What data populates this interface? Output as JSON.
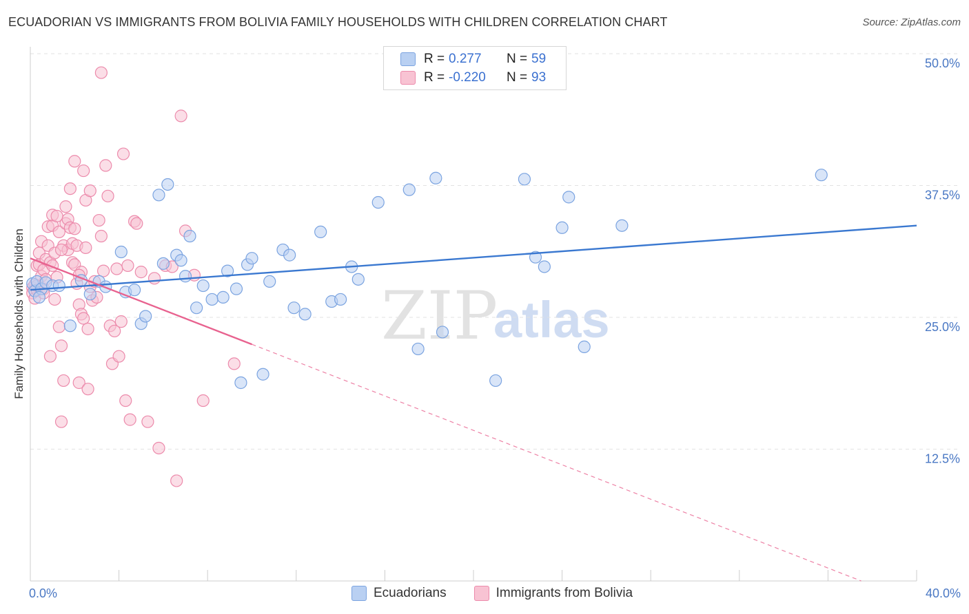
{
  "title": "ECUADORIAN VS IMMIGRANTS FROM BOLIVIA FAMILY HOUSEHOLDS WITH CHILDREN CORRELATION CHART",
  "source": "Source: ZipAtlas.com",
  "watermark": {
    "zip": "ZIP",
    "atlas": "atlas"
  },
  "legend_top": {
    "rows": [
      {
        "r_label": "R =",
        "r_value": "0.277",
        "n_label": "N =",
        "n_value": "59"
      },
      {
        "r_label": "R =",
        "r_value": "-0.220",
        "n_label": "N =",
        "n_value": "93"
      }
    ]
  },
  "legend_bottom": {
    "series1": "Ecuadorians",
    "series2": "Immigrants from Bolivia"
  },
  "colors": {
    "blue_fill": "#b9d0f2",
    "blue_stroke": "#7aa3e0",
    "blue_line": "#3a78d0",
    "pink_fill": "#f8c3d3",
    "pink_stroke": "#ec8aab",
    "pink_line": "#e8628f",
    "tick_text": "#4a78c4",
    "grid": "#e2e2e2"
  },
  "chart_data": {
    "type": "scatter",
    "title": "ECUADORIAN VS IMMIGRANTS FROM BOLIVIA FAMILY HOUSEHOLDS WITH CHILDREN CORRELATION CHART",
    "xlabel": "",
    "ylabel": "Family Households with Children",
    "xlim": [
      0,
      40
    ],
    "ylim": [
      0,
      50
    ],
    "x_tick_labels": [
      "0.0%",
      "40.0%"
    ],
    "y_ticks": [
      12.5,
      25.0,
      37.5,
      50.0
    ],
    "y_tick_labels": [
      "12.5%",
      "25.0%",
      "37.5%",
      "50.0%"
    ],
    "grid": true,
    "series": [
      {
        "name": "Ecuadorians",
        "r": 0.277,
        "n": 59,
        "trend": {
          "x": [
            0,
            40
          ],
          "y": [
            27.6,
            33.7
          ],
          "solid_to": 40
        },
        "points": [
          [
            0.1,
            28.2
          ],
          [
            0.2,
            27.5
          ],
          [
            0.3,
            28.4
          ],
          [
            0.5,
            27.7
          ],
          [
            0.7,
            28.3
          ],
          [
            1.0,
            28.0
          ],
          [
            1.3,
            28.0
          ],
          [
            1.8,
            24.2
          ],
          [
            2.3,
            28.5
          ],
          [
            2.7,
            27.2
          ],
          [
            3.1,
            28.4
          ],
          [
            3.4,
            27.9
          ],
          [
            4.1,
            31.2
          ],
          [
            4.3,
            27.4
          ],
          [
            4.7,
            27.6
          ],
          [
            5.0,
            24.4
          ],
          [
            5.2,
            25.1
          ],
          [
            5.8,
            36.6
          ],
          [
            6.0,
            30.1
          ],
          [
            6.2,
            37.6
          ],
          [
            6.6,
            30.9
          ],
          [
            6.8,
            30.4
          ],
          [
            7.0,
            28.9
          ],
          [
            7.2,
            32.7
          ],
          [
            7.5,
            25.9
          ],
          [
            7.8,
            28.0
          ],
          [
            8.2,
            26.7
          ],
          [
            8.7,
            26.9
          ],
          [
            8.9,
            29.4
          ],
          [
            9.3,
            27.7
          ],
          [
            9.5,
            18.8
          ],
          [
            9.8,
            30.0
          ],
          [
            10.0,
            30.6
          ],
          [
            10.5,
            19.6
          ],
          [
            10.8,
            28.4
          ],
          [
            11.4,
            31.4
          ],
          [
            11.7,
            30.9
          ],
          [
            11.9,
            25.9
          ],
          [
            12.4,
            25.3
          ],
          [
            13.1,
            33.1
          ],
          [
            13.6,
            26.5
          ],
          [
            14.0,
            26.7
          ],
          [
            14.5,
            29.8
          ],
          [
            14.8,
            28.6
          ],
          [
            15.7,
            35.9
          ],
          [
            17.1,
            37.1
          ],
          [
            17.5,
            22.0
          ],
          [
            18.3,
            38.2
          ],
          [
            18.6,
            23.6
          ],
          [
            21.0,
            19.0
          ],
          [
            22.3,
            38.1
          ],
          [
            22.8,
            30.7
          ],
          [
            23.2,
            29.8
          ],
          [
            24.0,
            33.5
          ],
          [
            24.3,
            36.4
          ],
          [
            25.0,
            22.2
          ],
          [
            26.7,
            33.7
          ],
          [
            35.7,
            38.5
          ],
          [
            0.4,
            26.9
          ]
        ]
      },
      {
        "name": "Immigrants from Bolivia",
        "r": -0.22,
        "n": 93,
        "trend": {
          "x": [
            0,
            37.5
          ],
          "y": [
            30.6,
            0.0
          ],
          "solid_to": 10.0
        },
        "points": [
          [
            0.1,
            27.8
          ],
          [
            0.1,
            27.3
          ],
          [
            0.2,
            26.8
          ],
          [
            0.2,
            28.1
          ],
          [
            0.3,
            29.9
          ],
          [
            0.3,
            27.6
          ],
          [
            0.4,
            31.1
          ],
          [
            0.4,
            30.0
          ],
          [
            0.5,
            32.2
          ],
          [
            0.5,
            28.9
          ],
          [
            0.6,
            27.7
          ],
          [
            0.6,
            29.5
          ],
          [
            0.7,
            30.5
          ],
          [
            0.7,
            28.6
          ],
          [
            0.8,
            31.8
          ],
          [
            0.8,
            33.6
          ],
          [
            0.9,
            30.2
          ],
          [
            0.9,
            21.3
          ],
          [
            1.0,
            33.7
          ],
          [
            1.0,
            34.7
          ],
          [
            1.1,
            26.7
          ],
          [
            1.1,
            31.1
          ],
          [
            1.2,
            28.8
          ],
          [
            1.2,
            34.6
          ],
          [
            1.3,
            33.1
          ],
          [
            1.3,
            24.1
          ],
          [
            1.4,
            22.3
          ],
          [
            1.4,
            15.1
          ],
          [
            1.5,
            19.0
          ],
          [
            1.5,
            31.8
          ],
          [
            1.6,
            33.9
          ],
          [
            1.6,
            35.5
          ],
          [
            1.7,
            31.4
          ],
          [
            1.7,
            34.3
          ],
          [
            1.8,
            37.2
          ],
          [
            1.8,
            33.5
          ],
          [
            1.9,
            32.0
          ],
          [
            1.9,
            30.2
          ],
          [
            2.0,
            39.8
          ],
          [
            2.0,
            30.0
          ],
          [
            2.1,
            31.8
          ],
          [
            2.1,
            28.2
          ],
          [
            2.2,
            26.2
          ],
          [
            2.2,
            18.8
          ],
          [
            2.3,
            25.3
          ],
          [
            2.3,
            29.3
          ],
          [
            2.4,
            38.9
          ],
          [
            2.4,
            24.9
          ],
          [
            2.5,
            36.1
          ],
          [
            2.5,
            31.6
          ],
          [
            2.6,
            23.9
          ],
          [
            2.6,
            18.2
          ],
          [
            2.7,
            37.0
          ],
          [
            2.7,
            27.9
          ],
          [
            2.8,
            26.6
          ],
          [
            2.9,
            28.4
          ],
          [
            3.0,
            26.9
          ],
          [
            3.1,
            34.2
          ],
          [
            3.2,
            32.7
          ],
          [
            3.3,
            29.4
          ],
          [
            3.4,
            39.4
          ],
          [
            3.5,
            36.5
          ],
          [
            3.6,
            24.2
          ],
          [
            3.7,
            20.6
          ],
          [
            3.8,
            23.7
          ],
          [
            3.9,
            29.6
          ],
          [
            4.0,
            21.3
          ],
          [
            4.1,
            24.6
          ],
          [
            4.2,
            40.5
          ],
          [
            4.3,
            17.1
          ],
          [
            4.4,
            29.9
          ],
          [
            4.5,
            15.3
          ],
          [
            4.7,
            34.1
          ],
          [
            4.8,
            33.9
          ],
          [
            5.0,
            29.3
          ],
          [
            5.3,
            15.1
          ],
          [
            5.6,
            28.7
          ],
          [
            5.8,
            12.6
          ],
          [
            6.1,
            29.9
          ],
          [
            6.4,
            29.8
          ],
          [
            6.6,
            9.5
          ],
          [
            6.8,
            44.1
          ],
          [
            7.0,
            33.2
          ],
          [
            7.4,
            29.0
          ],
          [
            7.8,
            17.1
          ],
          [
            9.2,
            20.6
          ],
          [
            2.0,
            33.4
          ],
          [
            1.4,
            31.4
          ],
          [
            0.6,
            27.3
          ],
          [
            1.0,
            29.9
          ],
          [
            2.2,
            29.0
          ],
          [
            3.2,
            48.2
          ],
          [
            0.3,
            28.0
          ]
        ]
      }
    ]
  }
}
